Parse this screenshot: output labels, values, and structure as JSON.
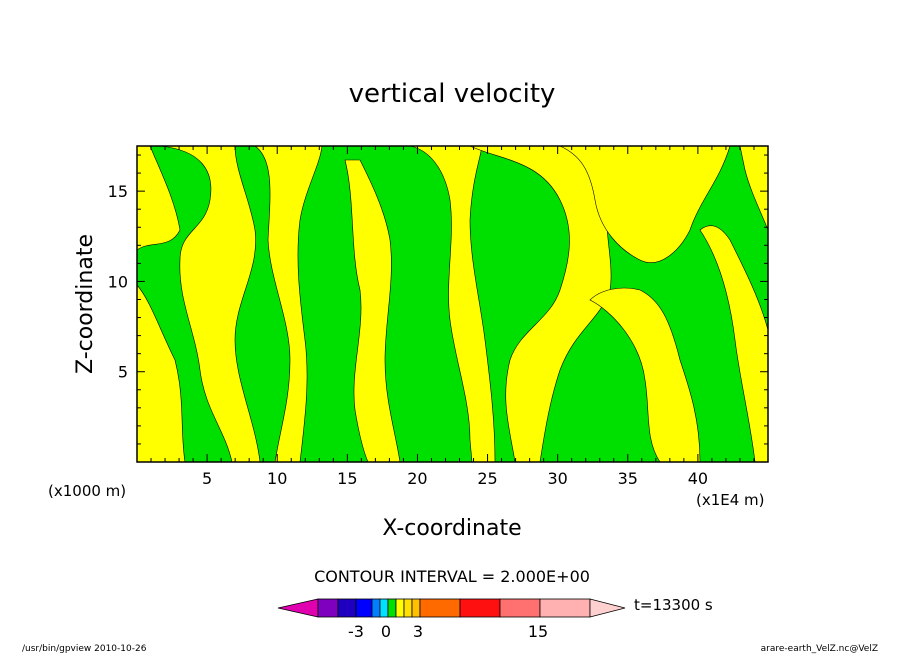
{
  "title": "vertical velocity",
  "chart_data": {
    "type": "heatmap",
    "title": "vertical velocity",
    "xlabel": "X-coordinate",
    "ylabel": "Z-coordinate",
    "x_unit_label": "(x1E4 m)",
    "y_unit_label": "(x1000 m)",
    "xlim": [
      0,
      45
    ],
    "ylim": [
      0,
      17.5
    ],
    "xticks": [
      5,
      10,
      15,
      20,
      25,
      30,
      35,
      40
    ],
    "xtick_labels": [
      "5",
      "10",
      "15",
      "20",
      "25",
      "30",
      "35",
      "40"
    ],
    "yticks": [
      5,
      10,
      15
    ],
    "ytick_labels": [
      "5",
      "10",
      "15"
    ],
    "fill_colors": {
      "positive_small": "#ffff00",
      "negative_small": "#00e000"
    }
  },
  "colorbar": {
    "contour_interval_label": "CONTOUR INTERVAL = 2.000E+00",
    "tick_labels": [
      "-3",
      "0",
      "3",
      "15"
    ],
    "colors": [
      "#e000b0",
      "#8000c0",
      "#2000c0",
      "#0000ff",
      "#0080ff",
      "#00e0ff",
      "#00e000",
      "#ffff00",
      "#ffe000",
      "#ffc000",
      "#ff6a00",
      "#ff1010",
      "#ff7070",
      "#ffb0b0",
      "#ffd0d0"
    ],
    "time_label": "t=13300 s"
  },
  "footer": {
    "left": "/usr/bin/gpview  2010-10-26",
    "right": "arare-earth_VelZ.nc@VelZ"
  }
}
